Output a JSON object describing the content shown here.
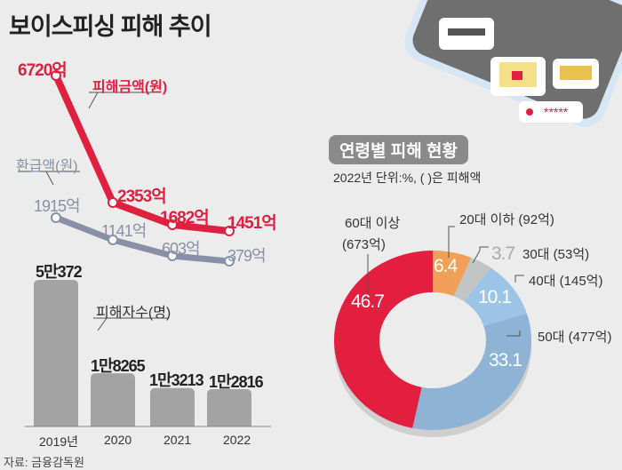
{
  "title": "보이스피싱 피해 추이",
  "source": "자료: 금융감독원",
  "colors": {
    "damage_line": "#e02040",
    "refund_line": "#8890a6",
    "bars": "#a3a3a3",
    "donut": [
      "#f0a058",
      "#c2c5c6",
      "#9cc4e8",
      "#8fb3d4",
      "#e31f3f"
    ]
  },
  "illustration": {
    "icons": [
      "credit-card-icon",
      "laptop-lock-icon",
      "money-stack-icon",
      "password-key-icon"
    ]
  },
  "chart_data": [
    {
      "type": "line",
      "categories": [
        "2019년",
        "2020",
        "2021",
        "2022"
      ],
      "series": [
        {
          "name": "피해금액(원)",
          "values": [
            6720,
            2353,
            1682,
            1451
          ],
          "labels": [
            "6720억",
            "2353억",
            "1682억",
            "1451억"
          ]
        },
        {
          "name": "환급액(원)",
          "values": [
            1915,
            1141,
            603,
            379
          ],
          "labels": [
            "1915억",
            "1141억",
            "603억",
            "379억"
          ]
        }
      ]
    },
    {
      "type": "bar",
      "categories": [
        "2019년",
        "2020",
        "2021",
        "2022"
      ],
      "series": [
        {
          "name": "피해자수(명)",
          "values": [
            50372,
            18265,
            13213,
            12816
          ],
          "labels": [
            "5만372",
            "1만8265",
            "1만3213",
            "1만2816"
          ]
        }
      ]
    },
    {
      "type": "pie",
      "title": "연령별 피해 현황",
      "subtitle": "2022년 단위:%, ( )은 피해액",
      "slices": [
        {
          "label": "20대 이하 (92억)",
          "value": 6.4,
          "pct": "6.4"
        },
        {
          "label": "30대 (53억)",
          "value": 3.7,
          "pct": "3.7"
        },
        {
          "label": "40대 (145억)",
          "value": 10.1,
          "pct": "10.1"
        },
        {
          "label": "50대 (477억)",
          "value": 33.1,
          "pct": "33.1"
        },
        {
          "label": "60대 이상",
          "label2": "(673억)",
          "value": 46.7,
          "pct": "46.7"
        }
      ]
    }
  ]
}
